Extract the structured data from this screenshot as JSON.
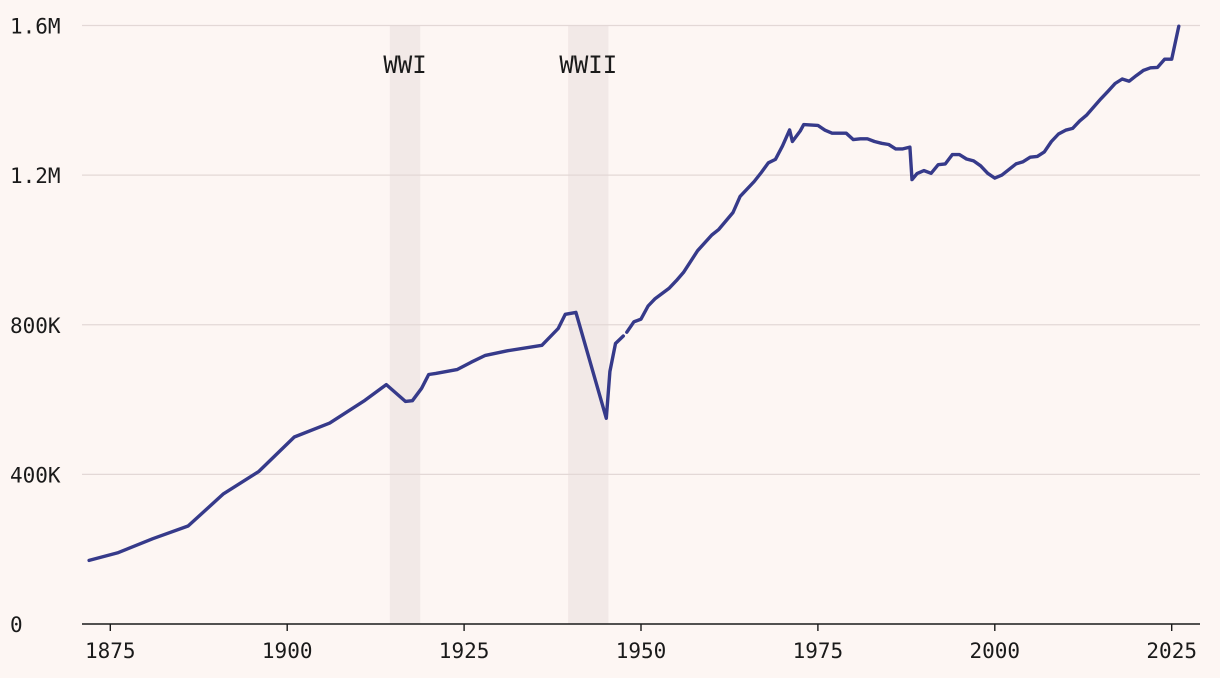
{
  "chart_data": {
    "type": "line",
    "title": "",
    "xlabel": "",
    "ylabel": "",
    "xlim": [
      1871,
      2029
    ],
    "ylim": [
      0,
      1600000
    ],
    "x_ticks": [
      1875,
      1900,
      1925,
      1950,
      1975,
      2000,
      2025
    ],
    "y_ticks": [
      {
        "value": 0,
        "label": "0"
      },
      {
        "value": 400000,
        "label": "400K"
      },
      {
        "value": 800000,
        "label": "800K"
      },
      {
        "value": 1200000,
        "label": "1.2M"
      },
      {
        "value": 1600000,
        "label": "1.6M"
      }
    ],
    "grid": true,
    "line_color": "#363a8a",
    "band_color": "#f2e9e7",
    "bands": [
      {
        "label": "WWI",
        "start": 1914.5,
        "end": 1918.8
      },
      {
        "label": "WWII",
        "start": 1939.7,
        "end": 1945.4
      }
    ],
    "series": [
      {
        "name": "",
        "segments": [
          [
            [
              1872,
              170000
            ],
            [
              1876,
              190000
            ],
            [
              1881,
              228000
            ],
            [
              1886,
              262000
            ],
            [
              1891,
              348000
            ],
            [
              1896,
              408000
            ],
            [
              1901,
              500000
            ],
            [
              1906,
              537000
            ],
            [
              1911,
              598000
            ],
            [
              1914,
              640000
            ],
            [
              1916.7,
              595000
            ],
            [
              1917.7,
              597000
            ],
            [
              1919,
              630000
            ],
            [
              1920,
              667000
            ],
            [
              1921,
              670000
            ],
            [
              1924,
              680000
            ],
            [
              1926,
              700000
            ],
            [
              1928,
              718000
            ],
            [
              1931,
              730000
            ],
            [
              1936,
              745000
            ],
            [
              1938.3,
              790000
            ],
            [
              1939.3,
              828000
            ],
            [
              1940.8,
              833000
            ],
            [
              1945.1,
              550000
            ],
            [
              1945.6,
              675000
            ],
            [
              1946.4,
              750000
            ],
            [
              1947.5,
              770000
            ]
          ],
          [
            [
              1948,
              780000
            ],
            [
              1949,
              808000
            ],
            [
              1950,
              815000
            ],
            [
              1951,
              850000
            ],
            [
              1952,
              870000
            ],
            [
              1954,
              898000
            ],
            [
              1955,
              918000
            ],
            [
              1956,
              940000
            ],
            [
              1958,
              998000
            ],
            [
              1960,
              1040000
            ],
            [
              1961,
              1055000
            ],
            [
              1963,
              1100000
            ],
            [
              1964,
              1143000
            ],
            [
              1966,
              1183000
            ],
            [
              1967,
              1207000
            ],
            [
              1968,
              1233000
            ],
            [
              1969,
              1242000
            ],
            [
              1970,
              1278000
            ],
            [
              1971,
              1321000
            ],
            [
              1971.4,
              1290000
            ],
            [
              1972.5,
              1318000
            ],
            [
              1973,
              1335000
            ],
            [
              1975,
              1333000
            ],
            [
              1976,
              1320000
            ],
            [
              1977,
              1312000
            ],
            [
              1979,
              1312000
            ],
            [
              1980,
              1295000
            ],
            [
              1981,
              1297000
            ],
            [
              1982,
              1297000
            ],
            [
              1983,
              1290000
            ],
            [
              1984,
              1285000
            ],
            [
              1985,
              1282000
            ],
            [
              1986,
              1270000
            ],
            [
              1987,
              1270000
            ],
            [
              1988,
              1275000
            ],
            [
              1988.3,
              1188000
            ],
            [
              1989,
              1204000
            ],
            [
              1990,
              1212000
            ],
            [
              1991,
              1205000
            ],
            [
              1992,
              1228000
            ],
            [
              1993,
              1230000
            ],
            [
              1994,
              1255000
            ],
            [
              1995,
              1255000
            ],
            [
              1996,
              1243000
            ],
            [
              1997,
              1238000
            ],
            [
              1998,
              1225000
            ],
            [
              1999,
              1205000
            ],
            [
              2000,
              1192000
            ],
            [
              2001,
              1200000
            ],
            [
              2003,
              1230000
            ],
            [
              2004,
              1236000
            ],
            [
              2005,
              1248000
            ],
            [
              2006,
              1250000
            ],
            [
              2007,
              1262000
            ],
            [
              2008,
              1290000
            ],
            [
              2009,
              1310000
            ],
            [
              2010,
              1320000
            ],
            [
              2011,
              1325000
            ],
            [
              2012,
              1345000
            ],
            [
              2013,
              1361000
            ],
            [
              2014,
              1383000
            ],
            [
              2015,
              1404000
            ],
            [
              2016,
              1424000
            ],
            [
              2017,
              1445000
            ],
            [
              2018,
              1457000
            ],
            [
              2019,
              1451000
            ],
            [
              2020,
              1466000
            ],
            [
              2021,
              1480000
            ],
            [
              2022,
              1487000
            ],
            [
              2023,
              1488000
            ],
            [
              2024,
              1510000
            ],
            [
              2025,
              1510000
            ],
            [
              2026,
              1598000
            ]
          ]
        ]
      }
    ]
  }
}
